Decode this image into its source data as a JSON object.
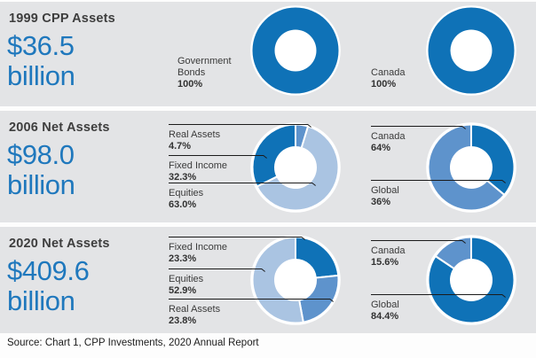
{
  "source_text": "Source: Chart 1, CPP Investments, 2020 Annual Report",
  "colors": {
    "dark": "#0f72b7",
    "medium": "#5e93cc",
    "light": "#aac4e2",
    "amount_text": "#1f78bd",
    "band_background": "#e3e4e6"
  },
  "rows": [
    {
      "title": "1999 CPP Assets",
      "amount": "$36.5",
      "unit": "billion",
      "mix_chart": "mix-1999",
      "geo_chart": "geo-1999"
    },
    {
      "title": "2006 Net Assets",
      "amount": "$98.0",
      "unit": "billion",
      "mix_chart": "mix-2006",
      "geo_chart": "geo-2006"
    },
    {
      "title": "2020 Net Assets",
      "amount": "$409.6",
      "unit": "billion",
      "mix_chart": "mix-2020",
      "geo_chart": "geo-2020"
    }
  ],
  "chart_data": [
    {
      "id": "mix-1999",
      "type": "pie",
      "variant": "donut",
      "group": "asset-mix",
      "year": "1999",
      "slices": [
        {
          "label": "Government Bonds",
          "value": 100,
          "pct_label": "100%",
          "color": "dark"
        }
      ],
      "label_order": [
        0
      ],
      "leader_lines": false
    },
    {
      "id": "geo-1999",
      "type": "pie",
      "variant": "donut",
      "group": "geography",
      "year": "1999",
      "slices": [
        {
          "label": "Canada",
          "value": 100,
          "pct_label": "100%",
          "color": "dark"
        }
      ],
      "label_order": [
        0
      ],
      "leader_lines": false
    },
    {
      "id": "mix-2006",
      "type": "pie",
      "variant": "donut",
      "group": "asset-mix",
      "year": "2006",
      "slices": [
        {
          "label": "Real Assets",
          "value": 4.7,
          "pct_label": "4.7%",
          "color": "medium"
        },
        {
          "label": "Equities",
          "value": 63.0,
          "pct_label": "63.0%",
          "color": "light"
        },
        {
          "label": "Fixed Income",
          "value": 32.3,
          "pct_label": "32.3%",
          "color": "dark"
        }
      ],
      "label_order": [
        0,
        2,
        1
      ],
      "leader_lines": true
    },
    {
      "id": "geo-2006",
      "type": "pie",
      "variant": "donut",
      "group": "geography",
      "year": "2006",
      "slices": [
        {
          "label": "Global",
          "value": 36,
          "pct_label": "36%",
          "color": "dark"
        },
        {
          "label": "Canada",
          "value": 64,
          "pct_label": "64%",
          "color": "medium"
        }
      ],
      "label_order": [
        1,
        0
      ],
      "leader_lines": true
    },
    {
      "id": "mix-2020",
      "type": "pie",
      "variant": "donut",
      "group": "asset-mix",
      "year": "2020",
      "slices": [
        {
          "label": "Fixed Income",
          "value": 23.3,
          "pct_label": "23.3%",
          "color": "dark"
        },
        {
          "label": "Real Assets",
          "value": 23.8,
          "pct_label": "23.8%",
          "color": "medium"
        },
        {
          "label": "Equities",
          "value": 52.9,
          "pct_label": "52.9%",
          "color": "light"
        }
      ],
      "label_order": [
        0,
        2,
        1
      ],
      "leader_lines": true
    },
    {
      "id": "geo-2020",
      "type": "pie",
      "variant": "donut",
      "group": "geography",
      "year": "2020",
      "slices": [
        {
          "label": "Global",
          "value": 84.4,
          "pct_label": "84.4%",
          "color": "dark"
        },
        {
          "label": "Canada",
          "value": 15.6,
          "pct_label": "15.6%",
          "color": "medium"
        }
      ],
      "label_order": [
        1,
        0
      ],
      "leader_lines": true
    }
  ]
}
